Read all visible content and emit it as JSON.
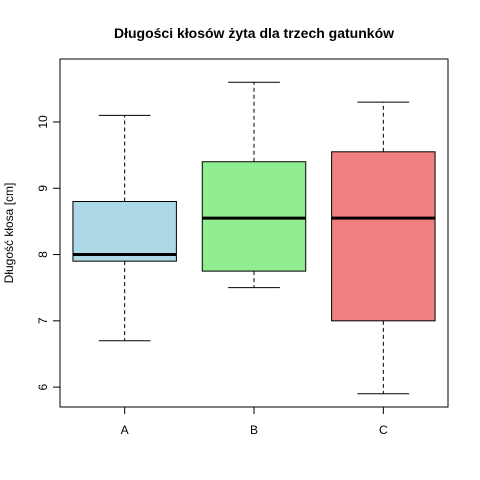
{
  "chart_data": {
    "type": "boxplot",
    "title": "Długości kłosów żyta dla trzech gatunków",
    "xlabel": "",
    "ylabel": "Długość kłosa [cm]",
    "ylim": [
      5.7,
      10.95
    ],
    "yticks": [
      6,
      7,
      8,
      9,
      10
    ],
    "grid": false,
    "categories": [
      "A",
      "B",
      "C"
    ],
    "boxes": [
      {
        "category": "A",
        "min": 6.7,
        "q1": 7.9,
        "median": 8.0,
        "q3": 8.8,
        "max": 10.1,
        "color": "#add8e6"
      },
      {
        "category": "B",
        "min": 7.5,
        "q1": 7.75,
        "median": 8.55,
        "q3": 9.4,
        "max": 10.6,
        "color": "#90ee90"
      },
      {
        "category": "C",
        "min": 5.9,
        "q1": 7.0,
        "median": 8.55,
        "q3": 9.55,
        "max": 10.3,
        "color": "#f08080"
      }
    ]
  }
}
